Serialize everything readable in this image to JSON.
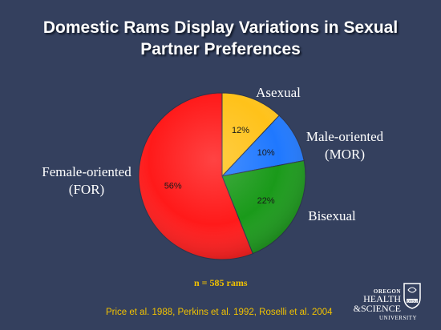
{
  "slide": {
    "title_line1": "Domestic Rams Display Variations in Sexual",
    "title_line2": "Partner Preferences",
    "sample_note": "n = 585 rams",
    "citation": "Price et al. 1988, Perkins et al. 1992, Roselli et al. 2004",
    "logo": {
      "line1": "OREGON",
      "line2": "HEALTH",
      "line3": "&SCIENCE",
      "line4": "UNIVERSITY",
      "seal_text": "OHSU"
    },
    "background_color": "#34405e"
  },
  "chart_data": {
    "type": "pie",
    "title": "Domestic Rams Display Variations in Sexual Partner Preferences",
    "slices": [
      {
        "label": "Asexual",
        "value": 12,
        "value_label": "12%",
        "color": "#ffc21a"
      },
      {
        "label": "Male-oriented (MOR)",
        "value": 10,
        "value_label": "10%",
        "color": "#1f78ff"
      },
      {
        "label": "Bisexual",
        "value": 22,
        "value_label": "22%",
        "color": "#1a9a1a"
      },
      {
        "label": "Female-oriented (FOR)",
        "value": 56,
        "value_label": "56%",
        "color": "#ff1a1a"
      }
    ],
    "category_labels": {
      "asexual": "Asexual",
      "mor_line1": "Male-oriented",
      "mor_line2": "(MOR)",
      "bisexual": "Bisexual",
      "for_line1": "Female-oriented",
      "for_line2": "(FOR)"
    },
    "legend": "none"
  }
}
